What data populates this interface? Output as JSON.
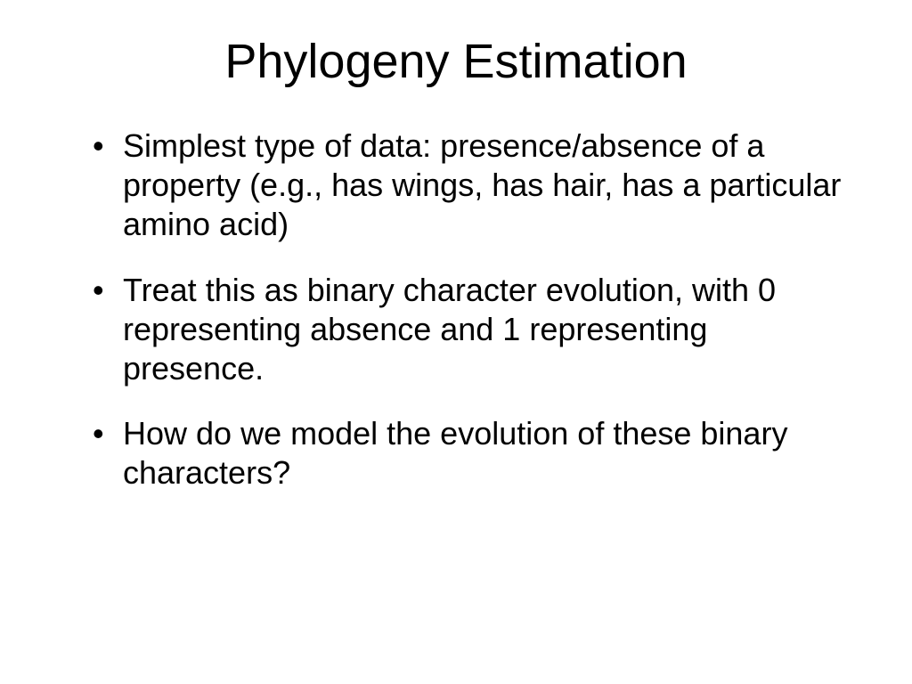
{
  "slide": {
    "title": "Phylogeny Estimation",
    "title_fontsize": 54,
    "title_color": "#000000",
    "body_fontsize": 36,
    "body_color": "#000000",
    "background_color": "#ffffff",
    "bullets": [
      "Simplest type of data: presence/absence of a property (e.g., has wings, has hair, has a particular amino acid)",
      "Treat this as binary character evolution, with 0 representing absence and 1 representing presence.",
      "How do we model the evolution of these binary characters?"
    ]
  }
}
